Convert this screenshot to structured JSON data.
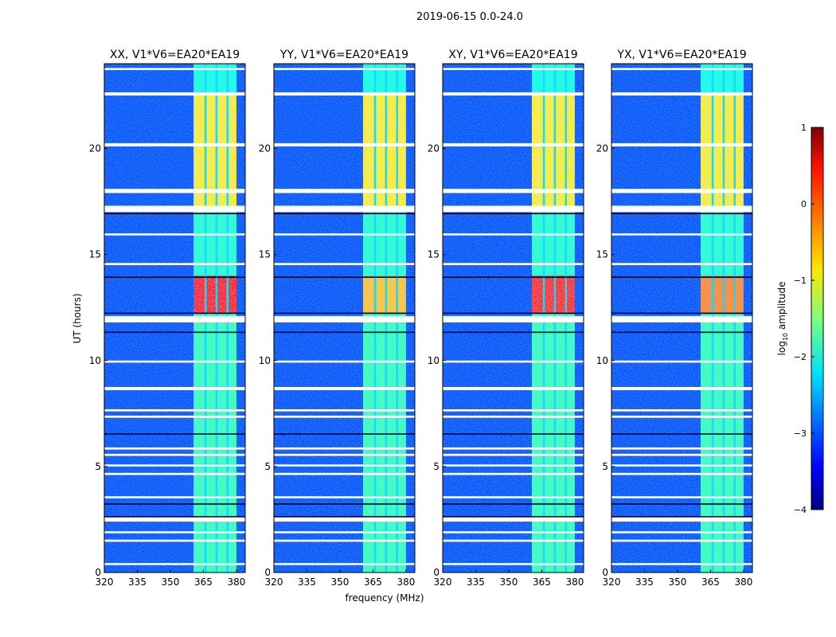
{
  "chart_data": {
    "type": "heatmap",
    "title": "2019-06-15 0.0-24.0",
    "xlabel": "frequency (MHz)",
    "ylabel": "UT (hours)",
    "xlim": [
      320,
      384
    ],
    "ylim": [
      0,
      24
    ],
    "xticks": [
      320,
      335,
      350,
      365,
      380
    ],
    "yticks": [
      0,
      5,
      10,
      15,
      20
    ],
    "colorbar": {
      "label": "log10 amplitude",
      "range": [
        -4,
        1
      ],
      "ticks": [
        1,
        0,
        -1,
        -2,
        -3,
        -4
      ]
    },
    "panels": [
      {
        "title": "XX, V1*V6=EA20*EA19",
        "high_block_level": 0.3
      },
      {
        "title": "YY, V1*V6=EA20*EA19",
        "high_block_level": -0.6
      },
      {
        "title": "XY, V1*V6=EA20*EA19",
        "high_block_level": 0.2
      },
      {
        "title": "YX, V1*V6=EA20*EA19",
        "high_block_level": -0.3
      }
    ],
    "background_level": -3.0,
    "band_mhz": [
      360.5,
      380
    ],
    "band_levels": [
      {
        "ut": [
          0,
          12.2
        ],
        "level": -1.8
      },
      {
        "ut": [
          12.2,
          14.0
        ],
        "level": "high_block"
      },
      {
        "ut": [
          14.0,
          17.2
        ],
        "level": -1.9
      },
      {
        "ut": [
          17.2,
          22.6
        ],
        "level": -0.8
      },
      {
        "ut": [
          22.6,
          24
        ],
        "level": -2.0
      }
    ],
    "flagged_ut": [
      [
        0.35,
        0.45
      ],
      [
        1.45,
        1.55
      ],
      [
        1.85,
        1.95
      ],
      [
        2.4,
        2.6
      ],
      [
        3.5,
        3.6
      ],
      [
        4.6,
        4.7
      ],
      [
        5.0,
        5.1
      ],
      [
        5.5,
        5.6
      ],
      [
        5.8,
        5.9
      ],
      [
        7.3,
        7.4
      ],
      [
        7.6,
        7.7
      ],
      [
        8.6,
        8.75
      ],
      [
        9.9,
        10.0
      ],
      [
        11.8,
        12.1
      ],
      [
        14.5,
        14.6
      ],
      [
        15.9,
        16.0
      ],
      [
        17.0,
        17.3
      ],
      [
        17.9,
        18.1
      ],
      [
        20.1,
        20.25
      ],
      [
        22.5,
        22.65
      ],
      [
        23.7,
        23.8
      ]
    ],
    "dark_ut": [
      [
        2.6,
        2.66
      ],
      [
        3.2,
        3.26
      ],
      [
        6.5,
        6.56
      ],
      [
        11.3,
        11.36
      ],
      [
        12.2,
        12.26
      ],
      [
        13.9,
        13.96
      ],
      [
        16.9,
        16.96
      ]
    ]
  }
}
